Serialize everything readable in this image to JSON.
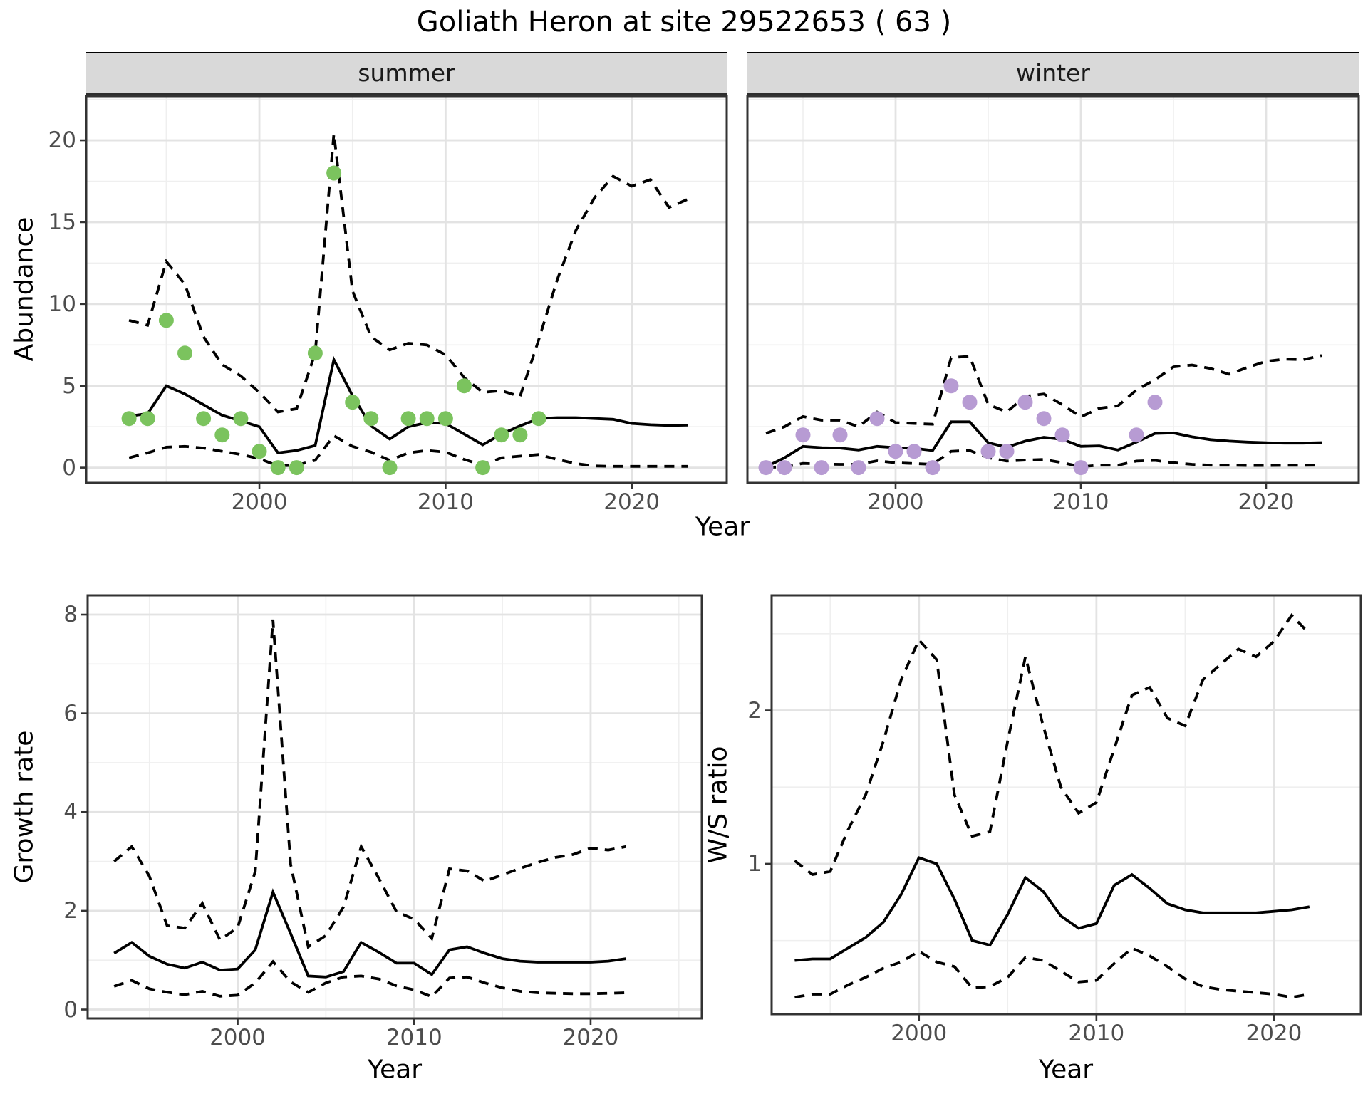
{
  "title": "Goliath Heron at site 29522653 ( 63 )",
  "colors": {
    "summer_point": "#7bc35e",
    "winter_point": "#b79bd3",
    "line": "#000000",
    "grid_major": "#e3e3e3",
    "grid_minor": "#efefef",
    "strip_bg": "#d9d9d9",
    "panel_border": "#333333",
    "tick_text": "#4d4d4d"
  },
  "chart_data": [
    {
      "id": "abundance_summer",
      "type": "line",
      "facet": "summer",
      "xlabel": "Year",
      "ylabel": "Abundance",
      "x_domain": [
        1990.7,
        2025.1
      ],
      "y_domain": [
        -0.93,
        22.7
      ],
      "x_ticks": [
        2000,
        2010,
        2020
      ],
      "x_minor": [
        1995,
        2005,
        2015
      ],
      "y_ticks": [
        0,
        5,
        10,
        15,
        20
      ],
      "y_minor": [
        2.5,
        7.5,
        12.5,
        17.5,
        22.5
      ],
      "years": [
        1993,
        1994,
        1995,
        1996,
        1997,
        1998,
        1999,
        2000,
        2001,
        2002,
        2003,
        2004,
        2005,
        2006,
        2007,
        2008,
        2009,
        2010,
        2011,
        2012,
        2013,
        2014,
        2015,
        2016,
        2017,
        2018,
        2019,
        2020,
        2021,
        2022,
        2023
      ],
      "series": [
        {
          "name": "fitted",
          "style": "solid",
          "values": [
            3.15,
            3.3,
            5.0,
            4.5,
            3.85,
            3.2,
            2.85,
            2.5,
            0.9,
            1.05,
            1.35,
            6.6,
            4.4,
            2.55,
            1.75,
            2.5,
            2.75,
            2.7,
            2.05,
            1.4,
            2.05,
            2.55,
            3.0,
            3.05,
            3.05,
            3.0,
            2.95,
            2.7,
            2.62,
            2.58,
            2.6
          ]
        },
        {
          "name": "upper_95ci",
          "style": "dashed",
          "values": [
            9.0,
            8.7,
            12.6,
            11.2,
            8.0,
            6.3,
            5.6,
            4.6,
            3.4,
            3.6,
            7.0,
            20.4,
            10.8,
            8.0,
            7.2,
            7.6,
            7.5,
            6.9,
            5.5,
            4.6,
            4.7,
            4.35,
            7.8,
            11.5,
            14.5,
            16.5,
            17.8,
            17.2,
            17.6,
            15.9,
            16.4
          ]
        },
        {
          "name": "lower_95ci",
          "style": "dashed",
          "values": [
            0.6,
            0.9,
            1.25,
            1.3,
            1.2,
            1.0,
            0.8,
            0.55,
            0.1,
            0.15,
            0.45,
            1.95,
            1.3,
            0.95,
            0.45,
            0.9,
            1.05,
            0.95,
            0.5,
            0.15,
            0.6,
            0.7,
            0.8,
            0.5,
            0.25,
            0.1,
            0.08,
            0.08,
            0.08,
            0.08,
            0.08
          ]
        }
      ],
      "observed": {
        "color_key": "summer_point",
        "points": [
          [
            1993,
            3
          ],
          [
            1994,
            3
          ],
          [
            1995,
            9
          ],
          [
            1996,
            7
          ],
          [
            1997,
            3
          ],
          [
            1998,
            2
          ],
          [
            1999,
            3
          ],
          [
            2000,
            1
          ],
          [
            2001,
            0
          ],
          [
            2002,
            0
          ],
          [
            2003,
            7
          ],
          [
            2004,
            18
          ],
          [
            2005,
            4
          ],
          [
            2006,
            3
          ],
          [
            2007,
            0
          ],
          [
            2008,
            3
          ],
          [
            2009,
            3
          ],
          [
            2010,
            3
          ],
          [
            2011,
            5
          ],
          [
            2012,
            0
          ],
          [
            2013,
            2
          ],
          [
            2014,
            2
          ],
          [
            2015,
            3
          ]
        ]
      }
    },
    {
      "id": "abundance_winter",
      "type": "line",
      "facet": "winter",
      "xlabel": "Year",
      "ylabel": "Abundance",
      "x_domain": [
        1992.0,
        2025.0
      ],
      "y_domain": [
        -0.93,
        22.7
      ],
      "x_ticks": [
        2000,
        2010,
        2020
      ],
      "x_minor": [
        1995,
        2005,
        2015
      ],
      "y_ticks": [],
      "y_minor": [
        2.5,
        7.5,
        12.5,
        17.5,
        22.5
      ],
      "y_grid_major": [
        0,
        5,
        10,
        15,
        20
      ],
      "years": [
        1993,
        1994,
        1995,
        1996,
        1997,
        1998,
        1999,
        2000,
        2001,
        2002,
        2003,
        2004,
        2005,
        2006,
        2007,
        2008,
        2009,
        2010,
        2011,
        2012,
        2013,
        2014,
        2015,
        2016,
        2017,
        2018,
        2019,
        2020,
        2021,
        2022,
        2023
      ],
      "series": [
        {
          "name": "fitted",
          "style": "solid",
          "values": [
            0.05,
            0.6,
            1.3,
            1.22,
            1.2,
            1.08,
            1.3,
            1.22,
            1.18,
            1.05,
            2.8,
            2.8,
            1.52,
            1.25,
            1.62,
            1.85,
            1.73,
            1.3,
            1.33,
            1.08,
            1.56,
            2.09,
            2.12,
            1.88,
            1.71,
            1.62,
            1.56,
            1.52,
            1.5,
            1.5,
            1.53
          ]
        },
        {
          "name": "upper_95ci",
          "style": "dashed",
          "values": [
            2.1,
            2.5,
            3.12,
            2.9,
            2.9,
            2.5,
            3.4,
            2.75,
            2.7,
            2.65,
            6.73,
            6.8,
            3.86,
            3.4,
            4.36,
            4.5,
            3.85,
            3.1,
            3.63,
            3.78,
            4.75,
            5.37,
            6.16,
            6.27,
            6.06,
            5.71,
            6.13,
            6.5,
            6.63,
            6.6,
            6.85
          ]
        },
        {
          "name": "lower_95ci",
          "style": "dashed",
          "values": [
            0.02,
            0.05,
            0.26,
            0.22,
            0.2,
            0.2,
            0.42,
            0.3,
            0.25,
            0.2,
            1.0,
            1.05,
            0.6,
            0.4,
            0.46,
            0.5,
            0.3,
            0.06,
            0.15,
            0.15,
            0.4,
            0.44,
            0.3,
            0.2,
            0.15,
            0.15,
            0.13,
            0.13,
            0.14,
            0.14,
            0.15
          ]
        }
      ],
      "observed": {
        "color_key": "winter_point",
        "points": [
          [
            1993,
            0
          ],
          [
            1994,
            0
          ],
          [
            1995,
            2
          ],
          [
            1996,
            0
          ],
          [
            1997,
            2
          ],
          [
            1998,
            0
          ],
          [
            1999,
            3
          ],
          [
            2000,
            1
          ],
          [
            2001,
            1
          ],
          [
            2002,
            0
          ],
          [
            2003,
            5
          ],
          [
            2004,
            4
          ],
          [
            2005,
            1
          ],
          [
            2006,
            1
          ],
          [
            2007,
            4
          ],
          [
            2008,
            3
          ],
          [
            2009,
            2
          ],
          [
            2010,
            0
          ],
          [
            2013,
            2
          ],
          [
            2014,
            4
          ]
        ]
      }
    },
    {
      "id": "growth_rate",
      "type": "line",
      "facet": "",
      "xlabel": "Year",
      "ylabel": "Growth rate",
      "x_domain": [
        1991.5,
        2026.3
      ],
      "y_domain": [
        -0.18,
        8.39
      ],
      "x_ticks": [
        2000,
        2010,
        2020
      ],
      "x_minor": [
        1995,
        2005,
        2015,
        2025
      ],
      "y_ticks": [
        0,
        2,
        4,
        6,
        8
      ],
      "y_minor": [
        1,
        3,
        5,
        7
      ],
      "years": [
        1993,
        1994,
        1995,
        1996,
        1997,
        1998,
        1999,
        2000,
        2001,
        2002,
        2003,
        2004,
        2005,
        2006,
        2007,
        2008,
        2009,
        2010,
        2011,
        2012,
        2013,
        2014,
        2015,
        2016,
        2017,
        2018,
        2019,
        2020,
        2021,
        2022
      ],
      "series": [
        {
          "name": "fitted",
          "style": "solid",
          "values": [
            1.14,
            1.36,
            1.08,
            0.92,
            0.84,
            0.96,
            0.8,
            0.82,
            1.21,
            2.38,
            1.54,
            0.68,
            0.66,
            0.77,
            1.36,
            1.16,
            0.94,
            0.94,
            0.71,
            1.21,
            1.27,
            1.14,
            1.03,
            0.98,
            0.96,
            0.96,
            0.96,
            0.96,
            0.98,
            1.03
          ]
        },
        {
          "name": "upper_95ci",
          "style": "dashed",
          "values": [
            3.0,
            3.3,
            2.7,
            1.7,
            1.65,
            2.15,
            1.41,
            1.66,
            2.8,
            7.9,
            2.94,
            1.27,
            1.5,
            2.08,
            3.3,
            2.66,
            1.98,
            1.83,
            1.44,
            2.85,
            2.81,
            2.6,
            2.73,
            2.86,
            2.98,
            3.08,
            3.14,
            3.27,
            3.23,
            3.3
          ]
        },
        {
          "name": "lower_95ci",
          "style": "dashed",
          "values": [
            0.47,
            0.59,
            0.42,
            0.35,
            0.3,
            0.37,
            0.27,
            0.29,
            0.54,
            0.97,
            0.56,
            0.35,
            0.54,
            0.66,
            0.68,
            0.62,
            0.48,
            0.4,
            0.26,
            0.64,
            0.66,
            0.54,
            0.44,
            0.37,
            0.34,
            0.33,
            0.32,
            0.32,
            0.33,
            0.34
          ]
        }
      ],
      "observed": {
        "color_key": "",
        "points": []
      }
    },
    {
      "id": "ws_ratio",
      "type": "line",
      "facet": "",
      "xlabel": "Year",
      "ylabel": "W/S ratio",
      "x_domain": [
        1991.7,
        2024.9
      ],
      "y_domain": [
        0.02,
        2.75
      ],
      "x_ticks": [
        2000,
        2010,
        2020
      ],
      "x_minor": [
        1995,
        2005,
        2015
      ],
      "y_ticks": [
        1,
        2
      ],
      "y_minor": [
        0.5,
        1.5,
        2.5
      ],
      "years": [
        1993,
        1994,
        1995,
        1996,
        1997,
        1998,
        1999,
        2000,
        2001,
        2002,
        2003,
        2004,
        2005,
        2006,
        2007,
        2008,
        2009,
        2010,
        2011,
        2012,
        2013,
        2014,
        2015,
        2016,
        2017,
        2018,
        2019,
        2020,
        2021,
        2022
      ],
      "series": [
        {
          "name": "fitted",
          "style": "solid",
          "values": [
            0.37,
            0.38,
            0.38,
            0.45,
            0.52,
            0.62,
            0.8,
            1.04,
            1.0,
            0.77,
            0.5,
            0.47,
            0.67,
            0.91,
            0.82,
            0.66,
            0.58,
            0.61,
            0.86,
            0.93,
            0.84,
            0.74,
            0.7,
            0.68,
            0.68,
            0.68,
            0.68,
            0.69,
            0.7,
            0.72
          ]
        },
        {
          "name": "upper_95ci",
          "style": "dashed",
          "values": [
            1.02,
            0.93,
            0.95,
            1.22,
            1.45,
            1.8,
            2.2,
            2.46,
            2.33,
            1.45,
            1.18,
            1.21,
            1.8,
            2.35,
            1.9,
            1.5,
            1.33,
            1.4,
            1.75,
            2.1,
            2.15,
            1.95,
            1.9,
            2.2,
            2.3,
            2.4,
            2.35,
            2.45,
            2.62,
            2.5
          ]
        },
        {
          "name": "lower_95ci",
          "style": "dashed",
          "values": [
            0.13,
            0.15,
            0.15,
            0.21,
            0.26,
            0.32,
            0.36,
            0.43,
            0.36,
            0.33,
            0.19,
            0.2,
            0.26,
            0.39,
            0.37,
            0.3,
            0.23,
            0.24,
            0.35,
            0.45,
            0.4,
            0.33,
            0.25,
            0.2,
            0.18,
            0.17,
            0.16,
            0.15,
            0.13,
            0.15
          ]
        }
      ],
      "observed": {
        "color_key": "",
        "points": []
      }
    }
  ]
}
